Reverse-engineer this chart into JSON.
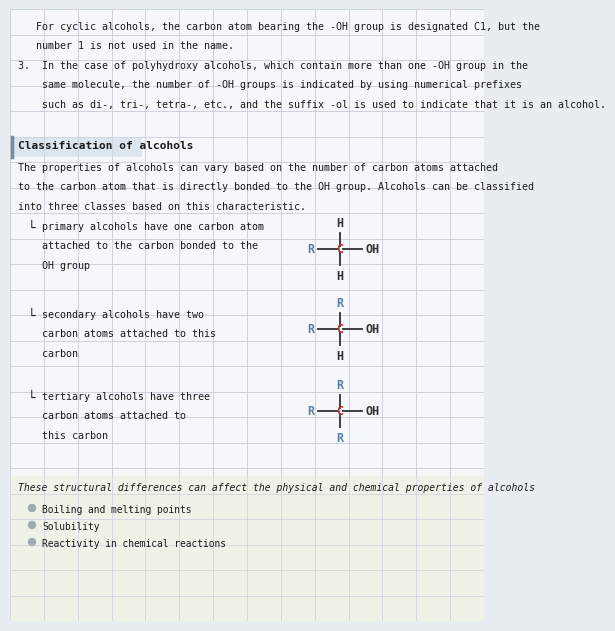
{
  "bg_color": "#e8edf2",
  "panel_color": "#f5f7fa",
  "grid_color": "#c8d0da",
  "title_text": "Classification of alcohols",
  "title_bg": "#dce6ee",
  "top_text_lines": [
    [
      "   For cyclic alcohols, the carbon atom bearing the -OH group is designated C1, but the",
      false
    ],
    [
      "   number 1 is not used in the name.",
      false
    ],
    [
      "3.  In the case of polyhydroxy alcohols, which contain more than one -OH group in the",
      false
    ],
    [
      "    same molecule, the number of -OH groups is indicated by using numerical prefixes",
      false
    ],
    [
      "    such as di-, tri-, tetra-, etc., and the suffix -ol is used to indicate that it is an alcohol.",
      false
    ]
  ],
  "classification_intro": [
    "The properties of alcohols can vary based on the number of carbon atoms attached",
    "to the carbon atom that is directly bonded to the OH group. Alcohols can be classified",
    "into three classes based on this characteristic."
  ],
  "primary_label": [
    "primary alcohols have one carbon atom",
    "attached to the carbon bonded to the",
    "OH group"
  ],
  "secondary_label": [
    "secondary alcohols have two",
    "carbon atoms attached to this",
    "carbon"
  ],
  "tertiary_label": [
    "tertiary alcohols have three",
    "carbon atoms attached to",
    "this carbon"
  ],
  "bottom_text": "These structural differences can affect the physical and chemical properties of alcohols",
  "bullet_items": [
    "Boiling and melting points",
    "Solubility",
    "Reactivity in chemical reactions"
  ],
  "R_color": "#5b7fa6",
  "C_color": "#b03030",
  "H_color": "#303030",
  "OH_color": "#303030",
  "bond_color": "#303030",
  "text_color": "#1a1a1a",
  "grid_nx": 14,
  "grid_ny": 24,
  "body_fontsize": 7.2,
  "struct_fontsize": 8.5,
  "title_fontsize": 8.0
}
